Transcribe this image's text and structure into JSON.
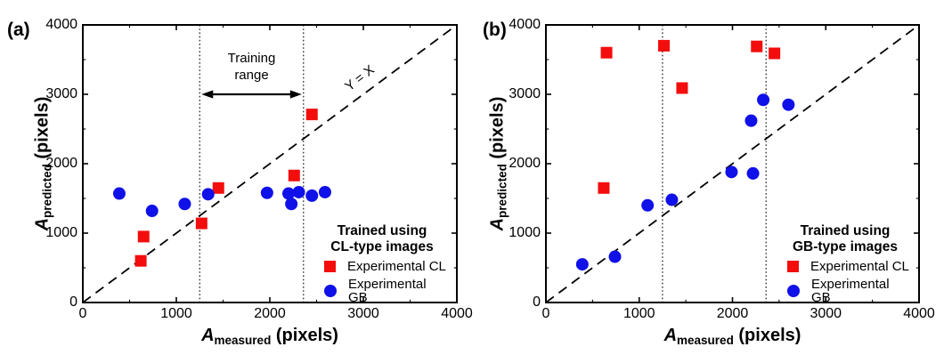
{
  "figure": {
    "background": "#ffffff",
    "axis_color": "#000000",
    "cl_color": "#f30d0d",
    "gb_color": "#1010e8"
  },
  "chart_data": [
    {
      "panel": "a",
      "panel_label": "(a)",
      "type": "scatter",
      "xlabel": {
        "main": "A",
        "sub": "measured",
        "rest": " (pixels)"
      },
      "ylabel": {
        "main": "A",
        "sub": "predicted",
        "rest": " (pixels)"
      },
      "xlim": [
        0,
        4000
      ],
      "ylim": [
        0,
        4000
      ],
      "xticks": [
        0,
        1000,
        2000,
        3000,
        4000
      ],
      "yticks": [
        0,
        1000,
        2000,
        3000,
        4000
      ],
      "minor_tick_step": 500,
      "grid": false,
      "identity_line": {
        "show": true,
        "label": "Y = X"
      },
      "training_range": {
        "from": 1250,
        "to": 2360,
        "label_line1": "Training",
        "label_line2": "range",
        "show_arrow": true,
        "arrow_y": 3000
      },
      "legend": {
        "position": "lower-right",
        "title_line1": "Trained using",
        "title_line2": "CL-type images",
        "items": [
          {
            "marker": "square",
            "label": "Experimental CL"
          },
          {
            "marker": "circle",
            "label": "Experimental GB"
          }
        ]
      },
      "series": [
        {
          "name": "Experimental CL",
          "marker": "square",
          "color": "#f30d0d",
          "points": [
            [
              620,
              600
            ],
            [
              650,
              950
            ],
            [
              1270,
              1140
            ],
            [
              1450,
              1650
            ],
            [
              2260,
              1830
            ],
            [
              2450,
              2710
            ]
          ]
        },
        {
          "name": "Experimental GB",
          "marker": "circle",
          "color": "#1010e8",
          "points": [
            [
              390,
              1570
            ],
            [
              740,
              1320
            ],
            [
              1090,
              1420
            ],
            [
              1340,
              1560
            ],
            [
              1970,
              1580
            ],
            [
              2200,
              1570
            ],
            [
              2230,
              1420
            ],
            [
              2310,
              1590
            ],
            [
              2450,
              1540
            ],
            [
              2590,
              1590
            ]
          ]
        }
      ]
    },
    {
      "panel": "b",
      "panel_label": "(b)",
      "type": "scatter",
      "xlabel": {
        "main": "A",
        "sub": "measured",
        "rest": " (pixels)"
      },
      "ylabel": {
        "main": "A",
        "sub": "predicted",
        "rest": " (pixels)"
      },
      "xlim": [
        0,
        4000
      ],
      "ylim": [
        0,
        4000
      ],
      "xticks": [
        0,
        1000,
        2000,
        3000,
        4000
      ],
      "yticks": [
        0,
        1000,
        2000,
        3000,
        4000
      ],
      "minor_tick_step": 500,
      "grid": false,
      "identity_line": {
        "show": true,
        "label": ""
      },
      "training_range": {
        "from": 1250,
        "to": 2360,
        "label_line1": "",
        "label_line2": "",
        "show_arrow": false,
        "arrow_y": 3000
      },
      "legend": {
        "position": "lower-right",
        "title_line1": "Trained using",
        "title_line2": "GB-type images",
        "items": [
          {
            "marker": "square",
            "label": "Experimental CL"
          },
          {
            "marker": "circle",
            "label": "Experimental GB"
          }
        ]
      },
      "series": [
        {
          "name": "Experimental CL",
          "marker": "square",
          "color": "#f30d0d",
          "points": [
            [
              620,
              1650
            ],
            [
              650,
              3600
            ],
            [
              1265,
              3700
            ],
            [
              1460,
              3090
            ],
            [
              2260,
              3690
            ],
            [
              2450,
              3590
            ]
          ]
        },
        {
          "name": "Experimental GB",
          "marker": "circle",
          "color": "#1010e8",
          "points": [
            [
              390,
              550
            ],
            [
              740,
              660
            ],
            [
              1090,
              1400
            ],
            [
              1350,
              1480
            ],
            [
              1990,
              1880
            ],
            [
              2220,
              1860
            ],
            [
              2200,
              2620
            ],
            [
              2330,
              2920
            ],
            [
              2600,
              2850
            ]
          ]
        }
      ]
    }
  ]
}
